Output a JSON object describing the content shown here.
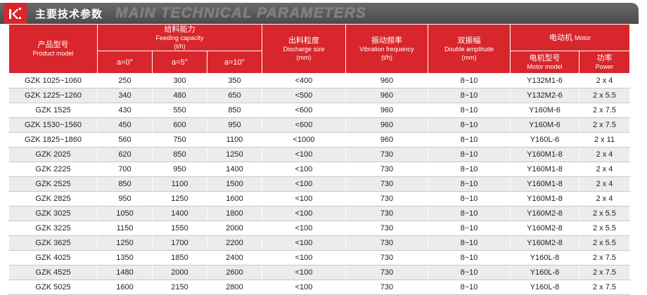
{
  "title": {
    "cn": "主要技术参数",
    "en": "MAIN TECHNICAL PARAMETERS"
  },
  "colors": {
    "accent": "#d8262c",
    "bar": "#555555",
    "row_alt": "#ececec"
  },
  "headers": {
    "model": {
      "cn": "产品型号",
      "en": "Product model"
    },
    "feeding": {
      "cn": "给料能力",
      "en": "Feeding capacity",
      "unit": "(t/h)"
    },
    "a0": "a=0°",
    "a5": "a=5°",
    "a10": "a=10°",
    "discharge": {
      "cn": "出料粒度",
      "en": "Discharge size",
      "unit": "(mm)"
    },
    "vibration": {
      "cn": "振动频率",
      "en": "Vibration frequency",
      "unit": "(t/h)"
    },
    "amplitude": {
      "cn": "双振幅",
      "en": "Double amplitude",
      "unit": "(mm)"
    },
    "motor": {
      "cn": "电动机",
      "en": "Motor"
    },
    "motor_model": {
      "cn": "电机型号",
      "en": "Motor model"
    },
    "power": {
      "cn": "功率",
      "en": "Power"
    }
  },
  "rows": [
    {
      "model": "GZK 1025~1060",
      "a0": "250",
      "a5": "300",
      "a10": "350",
      "discharge": "<400",
      "vibration": "960",
      "amplitude": "8~10",
      "motor": "Y132M1-6",
      "power": "2 x 4"
    },
    {
      "model": "GZK 1225~1260",
      "a0": "340",
      "a5": "480",
      "a10": "650",
      "discharge": "<500",
      "vibration": "960",
      "amplitude": "8~10",
      "motor": "Y132M2-6",
      "power": "2 x 5.5"
    },
    {
      "model": "GZK 1525",
      "a0": "430",
      "a5": "550",
      "a10": "850",
      "discharge": "<600",
      "vibration": "960",
      "amplitude": "8~10",
      "motor": "Y160M-6",
      "power": "2 x 7.5"
    },
    {
      "model": "GZK 1530~1560",
      "a0": "450",
      "a5": "600",
      "a10": "950",
      "discharge": "<600",
      "vibration": "960",
      "amplitude": "8~10",
      "motor": "Y160M-6",
      "power": "2 x 7.5"
    },
    {
      "model": "GZK 1825~1860",
      "a0": "560",
      "a5": "750",
      "a10": "1100",
      "discharge": "<1000",
      "vibration": "960",
      "amplitude": "8~10",
      "motor": "Y160L-6",
      "power": "2 x 11"
    },
    {
      "model": "GZK 2025",
      "a0": "620",
      "a5": "850",
      "a10": "1250",
      "discharge": "<100",
      "vibration": "730",
      "amplitude": "8~10",
      "motor": "Y160M1-8",
      "power": "2 x 4"
    },
    {
      "model": "GZK 2225",
      "a0": "700",
      "a5": "950",
      "a10": "1400",
      "discharge": "<100",
      "vibration": "730",
      "amplitude": "8~10",
      "motor": "Y160M1-8",
      "power": "2 x 4"
    },
    {
      "model": "GZK 2525",
      "a0": "850",
      "a5": "1100",
      "a10": "1500",
      "discharge": "<100",
      "vibration": "730",
      "amplitude": "8~10",
      "motor": "Y160M1-8",
      "power": "2 x 4"
    },
    {
      "model": "GZK 2825",
      "a0": "950",
      "a5": "1250",
      "a10": "1600",
      "discharge": "<100",
      "vibration": "730",
      "amplitude": "8~10",
      "motor": "Y160M1-8",
      "power": "2 x 4"
    },
    {
      "model": "GZK 3025",
      "a0": "1050",
      "a5": "1400",
      "a10": "1800",
      "discharge": "<100",
      "vibration": "730",
      "amplitude": "8~10",
      "motor": "Y160M2-8",
      "power": "2 x 5.5"
    },
    {
      "model": "GZK 3225",
      "a0": "1150",
      "a5": "1550",
      "a10": "2000",
      "discharge": "<100",
      "vibration": "730",
      "amplitude": "8~10",
      "motor": "Y160M2-8",
      "power": "2 x 5.5"
    },
    {
      "model": "GZK 3625",
      "a0": "1250",
      "a5": "1700",
      "a10": "2200",
      "discharge": "<100",
      "vibration": "730",
      "amplitude": "8~10",
      "motor": "Y160M2-8",
      "power": "2 x 5.5"
    },
    {
      "model": "GZK 4025",
      "a0": "1350",
      "a5": "1850",
      "a10": "2400",
      "discharge": "<100",
      "vibration": "730",
      "amplitude": "8~10",
      "motor": "Y160L-8",
      "power": "2 x 7.5"
    },
    {
      "model": "GZK 4525",
      "a0": "1480",
      "a5": "2000",
      "a10": "2600",
      "discharge": "<100",
      "vibration": "730",
      "amplitude": "8~10",
      "motor": "Y160L-8",
      "power": "2 x 7.5"
    },
    {
      "model": "GZK 5025",
      "a0": "1600",
      "a5": "2150",
      "a10": "2800",
      "discharge": "<100",
      "vibration": "730",
      "amplitude": "8~10",
      "motor": "Y160L-8",
      "power": "2 x 7.5"
    }
  ]
}
